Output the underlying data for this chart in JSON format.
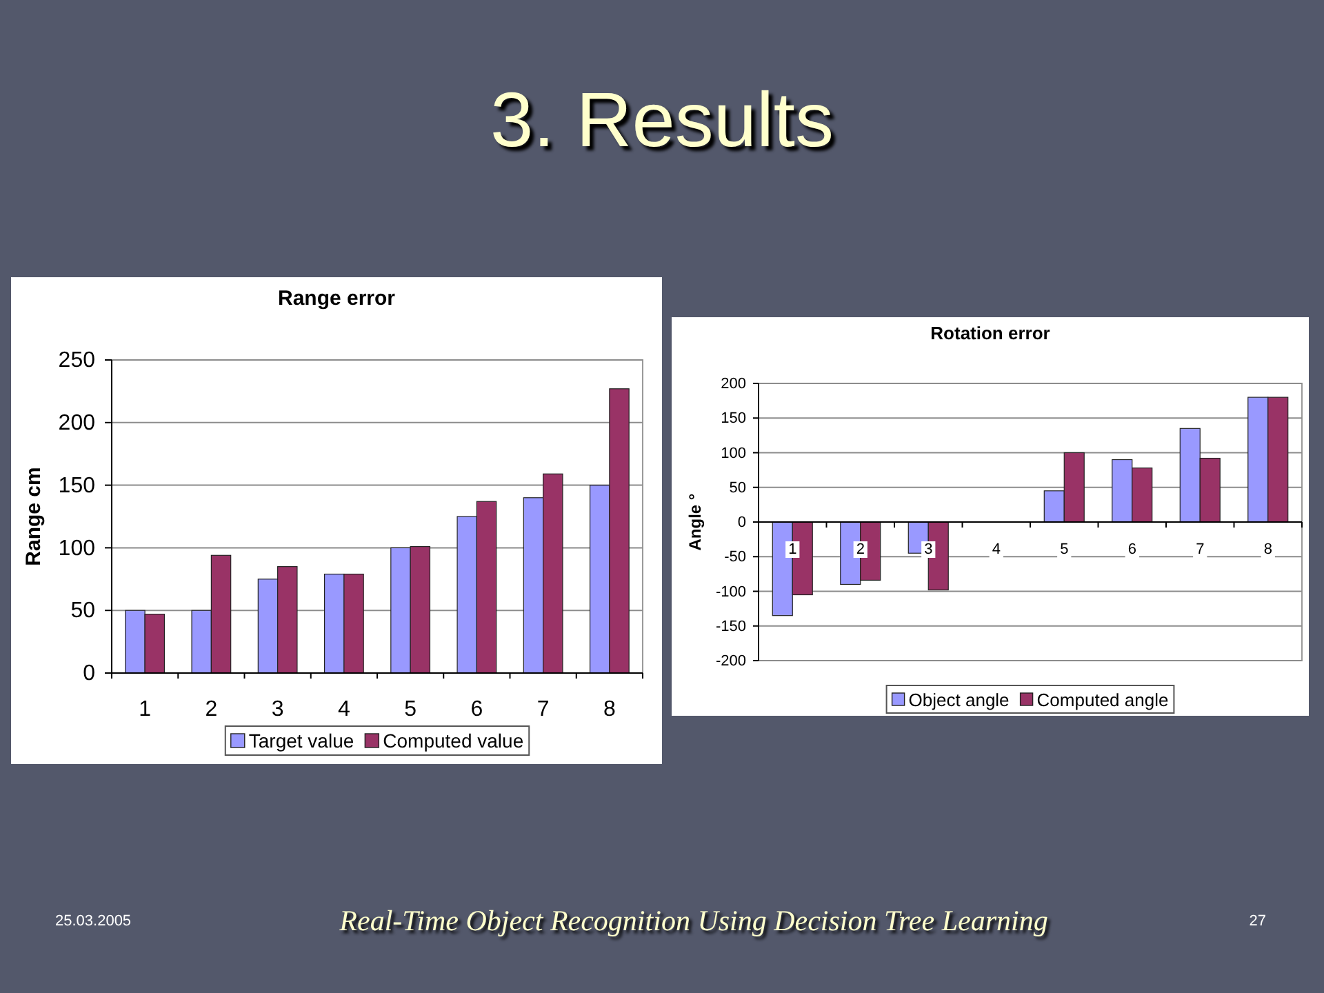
{
  "chart_data": [
    {
      "type": "other",
      "title": "3. Results"
    },
    {
      "type": "bar",
      "title": "Range error",
      "ylabel": "Range cm",
      "categories": [
        "1",
        "2",
        "3",
        "4",
        "5",
        "6",
        "7",
        "8"
      ],
      "series": [
        {
          "name": "Target value",
          "color": "#9999ff",
          "values": [
            50,
            50,
            75,
            79,
            100,
            125,
            140,
            150
          ]
        },
        {
          "name": "Computed value",
          "color": "#993366",
          "values": [
            47,
            94,
            85,
            79,
            101,
            137,
            159,
            227
          ]
        }
      ],
      "ylim": [
        0,
        250
      ],
      "yticks": [
        0,
        50,
        100,
        150,
        200,
        250
      ],
      "grid": "y",
      "legend": "bottom"
    },
    {
      "type": "bar",
      "title": "Rotation error",
      "ylabel": "Angle °",
      "categories": [
        "1",
        "2",
        "3",
        "4",
        "5",
        "6",
        "7",
        "8"
      ],
      "series": [
        {
          "name": "Object angle",
          "color": "#9999ff",
          "values": [
            -135,
            -90,
            -45,
            0,
            45,
            90,
            135,
            180
          ]
        },
        {
          "name": "Computed angle",
          "color": "#993366",
          "values": [
            -105,
            -84,
            -98,
            0,
            100,
            78,
            92,
            180
          ]
        }
      ],
      "ylim": [
        -200,
        200
      ],
      "yticks": [
        -200,
        -150,
        -100,
        -50,
        0,
        50,
        100,
        150,
        200
      ],
      "grid": "y",
      "legend": "bottom"
    },
    {
      "type": "other",
      "annotations": [
        "25.03.2005",
        "Real-Time Object Recognition Using Decision Tree Learning",
        "27"
      ]
    }
  ]
}
